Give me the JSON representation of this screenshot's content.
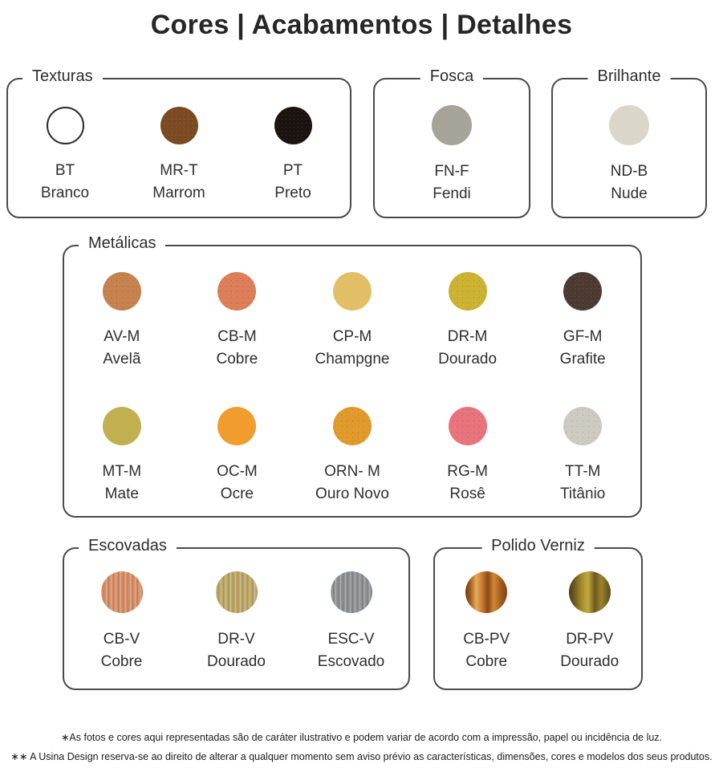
{
  "title": "Cores | Acabamentos | Detalhes",
  "groups": [
    {
      "label": "Texturas",
      "items": [
        {
          "code": "BT",
          "name": "Branco",
          "color": "#ffffff",
          "finish": "ring"
        },
        {
          "code": "MR-T",
          "name": "Marrom",
          "color": "#7b4a22",
          "finish": "textured"
        },
        {
          "code": "PT",
          "name": "Preto",
          "color": "#1b1310",
          "finish": "textured"
        }
      ]
    },
    {
      "label": "Fosca",
      "items": [
        {
          "code": "FN-F",
          "name": "Fendi",
          "color": "#a6a398",
          "finish": "flat"
        }
      ]
    },
    {
      "label": "Brilhante",
      "items": [
        {
          "code": "ND-B",
          "name": "Nude",
          "color": "#dbd6ca",
          "finish": "flat"
        }
      ]
    },
    {
      "label": "Metálicas",
      "items": [
        {
          "code": "AV-M",
          "name": "Avelã",
          "color": "#c5824e",
          "finish": "textured"
        },
        {
          "code": "CB-M",
          "name": "Cobre",
          "color": "#dc7e57",
          "finish": "textured"
        },
        {
          "code": "CP-M",
          "name": "Champgne",
          "color": "#e2bf66",
          "finish": "flat"
        },
        {
          "code": "DR-M",
          "name": "Dourado",
          "color": "#cbb231",
          "finish": "textured"
        },
        {
          "code": "GF-M",
          "name": "Grafite",
          "color": "#4c3a33",
          "finish": "textured"
        },
        {
          "code": "MT-M",
          "name": "Mate",
          "color": "#c1b04f",
          "finish": "flat"
        },
        {
          "code": "OC-M",
          "name": "Ocre",
          "color": "#f09c2e",
          "finish": "flat"
        },
        {
          "code": "ORN- M",
          "name": "Ouro Novo",
          "color": "#e1992b",
          "finish": "textured"
        },
        {
          "code": "RG-M",
          "name": "Rosê",
          "color": "#e8737b",
          "finish": "textured"
        },
        {
          "code": "TT-M",
          "name": "Titânio",
          "color": "#cdcac2",
          "finish": "textured"
        }
      ]
    },
    {
      "label": "Escovadas",
      "items": [
        {
          "code": "CB-V",
          "name": "Cobre",
          "color": "#d68f68",
          "finish": "brushed"
        },
        {
          "code": "DR-V",
          "name": "Dourado",
          "color": "#bca768",
          "finish": "brushed"
        },
        {
          "code": "ESC-V",
          "name": "Escovado",
          "color": "#8f9295",
          "finish": "brushed"
        }
      ]
    },
    {
      "label": "Polido Verniz",
      "items": [
        {
          "code": "CB-PV",
          "name": "Cobre",
          "finish": "polished",
          "gradient": [
            "#6e3a12",
            "#a55f1e 12%",
            "#e6ab5e 26%",
            "#c87b2e 40%",
            "#8a4a1a 54%",
            "#d28a33 68%",
            "#a35e1f 84%",
            "#7e4515"
          ]
        },
        {
          "code": "DR-PV",
          "name": "Dourado",
          "finish": "polished",
          "gradient": [
            "#4a3d18",
            "#6e5e20 14%",
            "#a98f2e 32%",
            "#c2a83d 46%",
            "#6b5a22 62%",
            "#9a842c 78%",
            "#57481c"
          ]
        }
      ]
    }
  ],
  "footnotes": [
    "∗As fotos e cores aqui representadas são de caráter ilustrativo e podem variar de acordo com a impressão, papel ou incidência de luz.",
    "∗∗ A Usina Design reserva-se ao direito de alterar a qualquer momento sem  aviso prévio  as características, dimensões, cores e modelos dos seus produtos."
  ]
}
